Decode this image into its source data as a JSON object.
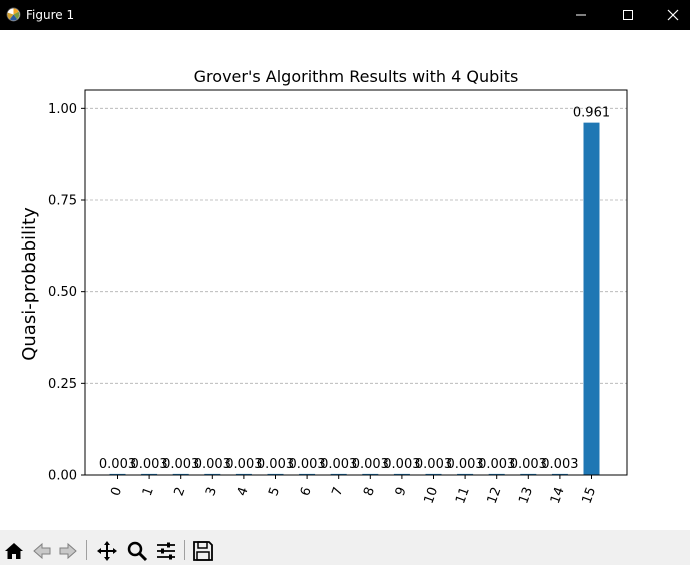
{
  "window": {
    "title": "Figure 1",
    "controls": [
      "minimize",
      "maximize",
      "close"
    ]
  },
  "toolbar": {
    "tools": [
      {
        "name": "home-icon",
        "label": "Home"
      },
      {
        "name": "back-icon",
        "label": "Back"
      },
      {
        "name": "forward-icon",
        "label": "Forward"
      },
      {
        "name": "pan-icon",
        "label": "Pan"
      },
      {
        "name": "zoom-icon",
        "label": "Zoom"
      },
      {
        "name": "configure-subplots-icon",
        "label": "Configure subplots"
      },
      {
        "name": "save-icon",
        "label": "Save"
      }
    ]
  },
  "colors": {
    "bar": "#1f77b4",
    "grid": "#b0b0b0",
    "titlebar": "#000000",
    "toolbar": "#f0f0f0"
  },
  "chart_data": {
    "type": "bar",
    "title": "Grover's Algorithm Results with 4 Qubits",
    "xlabel": "",
    "ylabel": "Quasi-probability",
    "categories": [
      "0",
      "1",
      "2",
      "3",
      "4",
      "5",
      "6",
      "7",
      "8",
      "9",
      "10",
      "11",
      "12",
      "13",
      "14",
      "15"
    ],
    "values": [
      0.003,
      0.003,
      0.003,
      0.003,
      0.003,
      0.003,
      0.003,
      0.003,
      0.003,
      0.003,
      0.003,
      0.003,
      0.003,
      0.003,
      0.003,
      0.961
    ],
    "value_labels": [
      "0.003",
      "0.003",
      "0.003",
      "0.003",
      "0.003",
      "0.003",
      "0.003",
      "0.003",
      "0.003",
      "0.003",
      "0.003",
      "0.003",
      "0.003",
      "0.003",
      "0.003",
      "0.961"
    ],
    "ylim": [
      0,
      1.05
    ],
    "yticks": [
      0.0,
      0.25,
      0.5,
      0.75,
      1.0
    ],
    "ytick_labels": [
      "0.00",
      "0.25",
      "0.50",
      "0.75",
      "1.00"
    ],
    "grid": "y-dashed",
    "x_tick_rotation": "70deg"
  }
}
